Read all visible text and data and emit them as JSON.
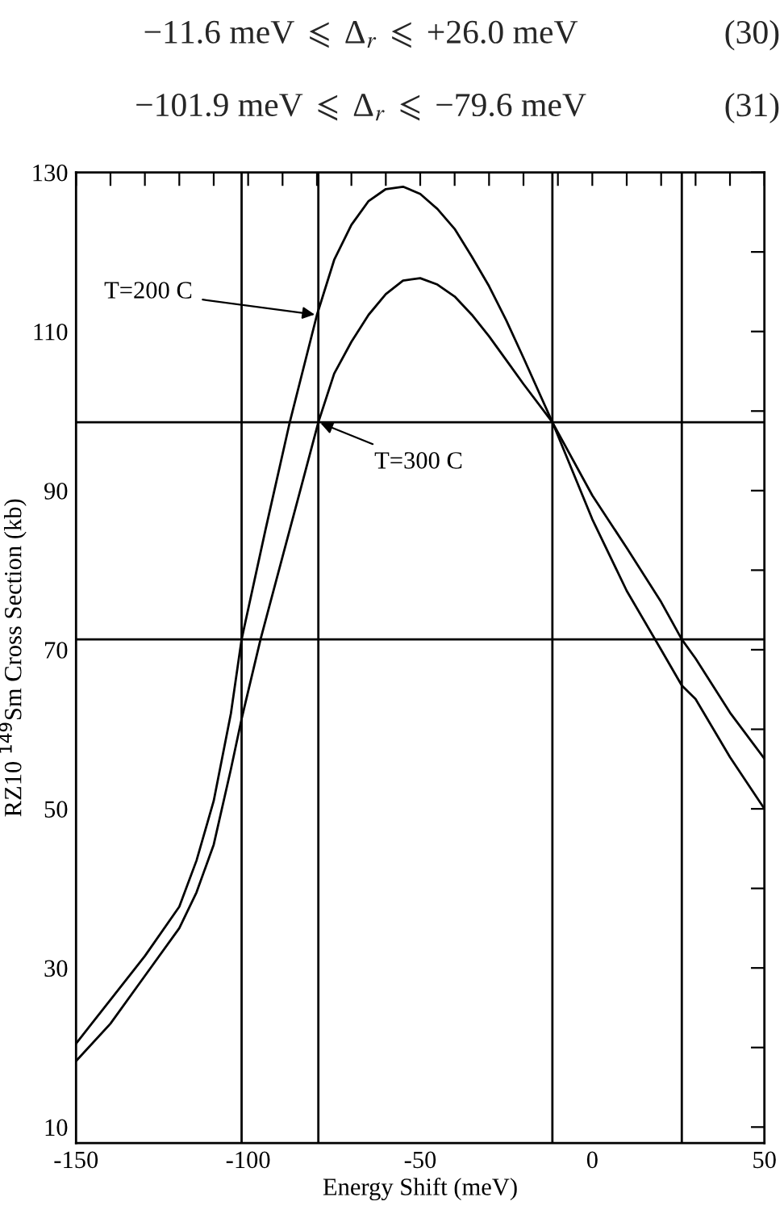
{
  "chart_data": {
    "type": "line",
    "xlabel": "Energy Shift (meV)",
    "ylabel": "RZ10 $^{149}$Sm Cross Section (kb)",
    "annotations": [
      "−11.6 meV ⩽ Δ$_{r}$ ⩽ +26.0 meV",
      "(30)",
      "−101.9 meV ⩽ Δ$_{r}$ ⩽ −79.6 meV",
      "(31)",
      {
        "text": "T=200 C",
        "x": -80,
        "y": 112.1
      },
      {
        "text": "T=300 C",
        "x": -79.6,
        "y": 98.6
      }
    ],
    "series": [
      {
        "color": "#000000",
        "x": [
          -150,
          -140,
          -130,
          -120,
          -115,
          -110,
          -105,
          -101.9,
          -95,
          -87.9,
          -80,
          -75,
          -70,
          -65,
          -60,
          -55,
          -50,
          -45,
          -40,
          -35,
          -30,
          -25,
          -20,
          -11.6,
          0,
          10,
          20,
          26,
          30,
          40,
          50
        ],
        "values": [
          20.5,
          26,
          31.5,
          37.7,
          43.5,
          51,
          62,
          71.3,
          85,
          98.6,
          112.1,
          119,
          123.4,
          126.4,
          127.9,
          128.2,
          127.3,
          125.4,
          122.9,
          119.4,
          115.7,
          111.4,
          106.7,
          98.6,
          86.4,
          77.4,
          70,
          65.5,
          63.8,
          56.5,
          50
        ]
      },
      {
        "color": "#000000",
        "x": [
          -150,
          -140,
          -130,
          -120,
          -115,
          -110,
          -105,
          -101.9,
          -96.4,
          -90,
          -85,
          -79.6,
          -75,
          -70,
          -65,
          -60,
          -55,
          -50,
          -45,
          -40,
          -35,
          -30,
          -25,
          -20,
          -11.6,
          0,
          10,
          20,
          26,
          30,
          40,
          50
        ],
        "values": [
          18.3,
          23,
          29,
          35,
          39.5,
          45.5,
          55,
          61.3,
          71.3,
          81.7,
          89.8,
          98.6,
          104.7,
          108.7,
          112.1,
          114.7,
          116.4,
          116.7,
          115.9,
          114.4,
          112.1,
          109.4,
          106.4,
          103.4,
          98.6,
          89.4,
          82.8,
          76,
          71.3,
          68.9,
          62.1,
          56.3
        ]
      }
    ],
    "ref_lines": [
      {
        "axis": "x",
        "value": -101.9,
        "color": "#000000"
      },
      {
        "axis": "x",
        "value": -79.6,
        "color": "#000000"
      },
      {
        "axis": "x",
        "value": -11.6,
        "color": "#000000"
      },
      {
        "axis": "x",
        "value": 26.0,
        "color": "#000000"
      },
      {
        "axis": "y",
        "value": 98.6,
        "color": "#000000"
      },
      {
        "axis": "y",
        "value": 71.3,
        "color": "#000000"
      }
    ],
    "xlim": [
      -150,
      50
    ],
    "ylim": [
      8,
      130
    ],
    "xticks": [
      -150,
      {
        "value": -140,
        "label": null
      },
      {
        "value": -130,
        "label": null
      },
      {
        "value": -120,
        "label": null
      },
      {
        "value": -110,
        "label": null
      },
      -100,
      {
        "value": -90,
        "label": null
      },
      {
        "value": -80,
        "label": null
      },
      {
        "value": -70,
        "label": null
      },
      {
        "value": -60,
        "label": null
      },
      -50,
      {
        "value": -40,
        "label": null
      },
      {
        "value": -30,
        "label": null
      },
      {
        "value": -20,
        "label": null
      },
      {
        "value": -10,
        "label": null
      },
      0,
      {
        "value": 10,
        "label": null
      },
      {
        "value": 20,
        "label": null
      },
      {
        "value": 30,
        "label": null
      },
      {
        "value": 40,
        "label": null
      },
      50
    ],
    "yticks": [
      10,
      {
        "value": 20,
        "label": null
      },
      30,
      {
        "value": 40,
        "label": null
      },
      50,
      {
        "value": 60,
        "label": null
      },
      70,
      {
        "value": 80,
        "label": null
      },
      90,
      {
        "value": 100,
        "label": null
      },
      110,
      {
        "value": 120,
        "label": null
      },
      130
    ],
    "grid": false,
    "legend": false,
    "line_style": "solid",
    "marker": "none"
  }
}
